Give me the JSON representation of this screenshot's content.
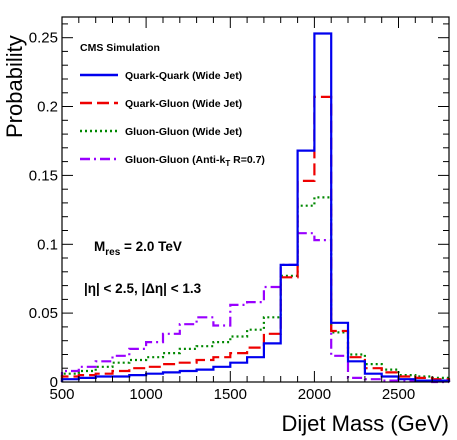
{
  "chart_data": {
    "type": "histogram",
    "xlabel": "Dijet Mass (GeV)",
    "ylabel": "Probability",
    "xlim": [
      500,
      2800
    ],
    "ylim": [
      0,
      0.265
    ],
    "x_ticks": [
      500,
      1000,
      1500,
      2000,
      2500
    ],
    "y_ticks": [
      0,
      0.05,
      0.1,
      0.15,
      0.2,
      0.25
    ],
    "y_tick_labels": [
      "0",
      "0.05",
      "0.1",
      "0.15",
      "0.2",
      "0.25"
    ],
    "title_label": "CMS Simulation",
    "annotations": {
      "mres_main": "M",
      "mres_sub": "res",
      "mres_rest": " = 2.0 TeV",
      "eta_cut": "|η| < 2.5, |Δη| < 1.3"
    },
    "bin_edges": [
      500,
      600,
      700,
      800,
      900,
      1000,
      1100,
      1200,
      1300,
      1400,
      1500,
      1600,
      1700,
      1800,
      1900,
      2000,
      2100,
      2200,
      2300,
      2400,
      2500,
      2600,
      2700,
      2800
    ],
    "series": [
      {
        "name": "Quark-Quark (Wide Jet)",
        "color": "#0000ee",
        "style": "solid",
        "values": [
          0.002,
          0.003,
          0.004,
          0.004,
          0.005,
          0.006,
          0.007,
          0.008,
          0.009,
          0.011,
          0.014,
          0.018,
          0.028,
          0.085,
          0.168,
          0.253,
          0.043,
          0.015,
          0.006,
          0.004,
          0.002,
          0.001,
          0.001
        ]
      },
      {
        "name": "Quark-Gluon (Wide Jet)",
        "color": "#ee0000",
        "style": "dashed",
        "values": [
          0.004,
          0.005,
          0.006,
          0.008,
          0.01,
          0.011,
          0.013,
          0.014,
          0.016,
          0.018,
          0.021,
          0.025,
          0.035,
          0.076,
          0.146,
          0.207,
          0.037,
          0.018,
          0.01,
          0.007,
          0.004,
          0.003,
          0.002
        ]
      },
      {
        "name": "Gluon-Gluon (Wide Jet)",
        "color": "#008800",
        "style": "dotted",
        "values": [
          0.006,
          0.008,
          0.011,
          0.014,
          0.016,
          0.018,
          0.021,
          0.024,
          0.026,
          0.029,
          0.033,
          0.038,
          0.047,
          0.077,
          0.128,
          0.134,
          0.036,
          0.02,
          0.013,
          0.009,
          0.005,
          0.004,
          0.003
        ]
      },
      {
        "name": "Gluon-Gluon (Anti-k",
        "name_sub": "T",
        "name_rest": " R=0.7)",
        "color": "#9900ff",
        "style": "dashdot",
        "values": [
          0.008,
          0.011,
          0.015,
          0.019,
          0.024,
          0.029,
          0.035,
          0.042,
          0.047,
          0.041,
          0.056,
          0.058,
          0.069,
          0.085,
          0.108,
          0.103,
          0.019,
          0.003,
          0.002,
          0.001,
          0.001,
          0.001,
          0.0
        ]
      }
    ]
  }
}
